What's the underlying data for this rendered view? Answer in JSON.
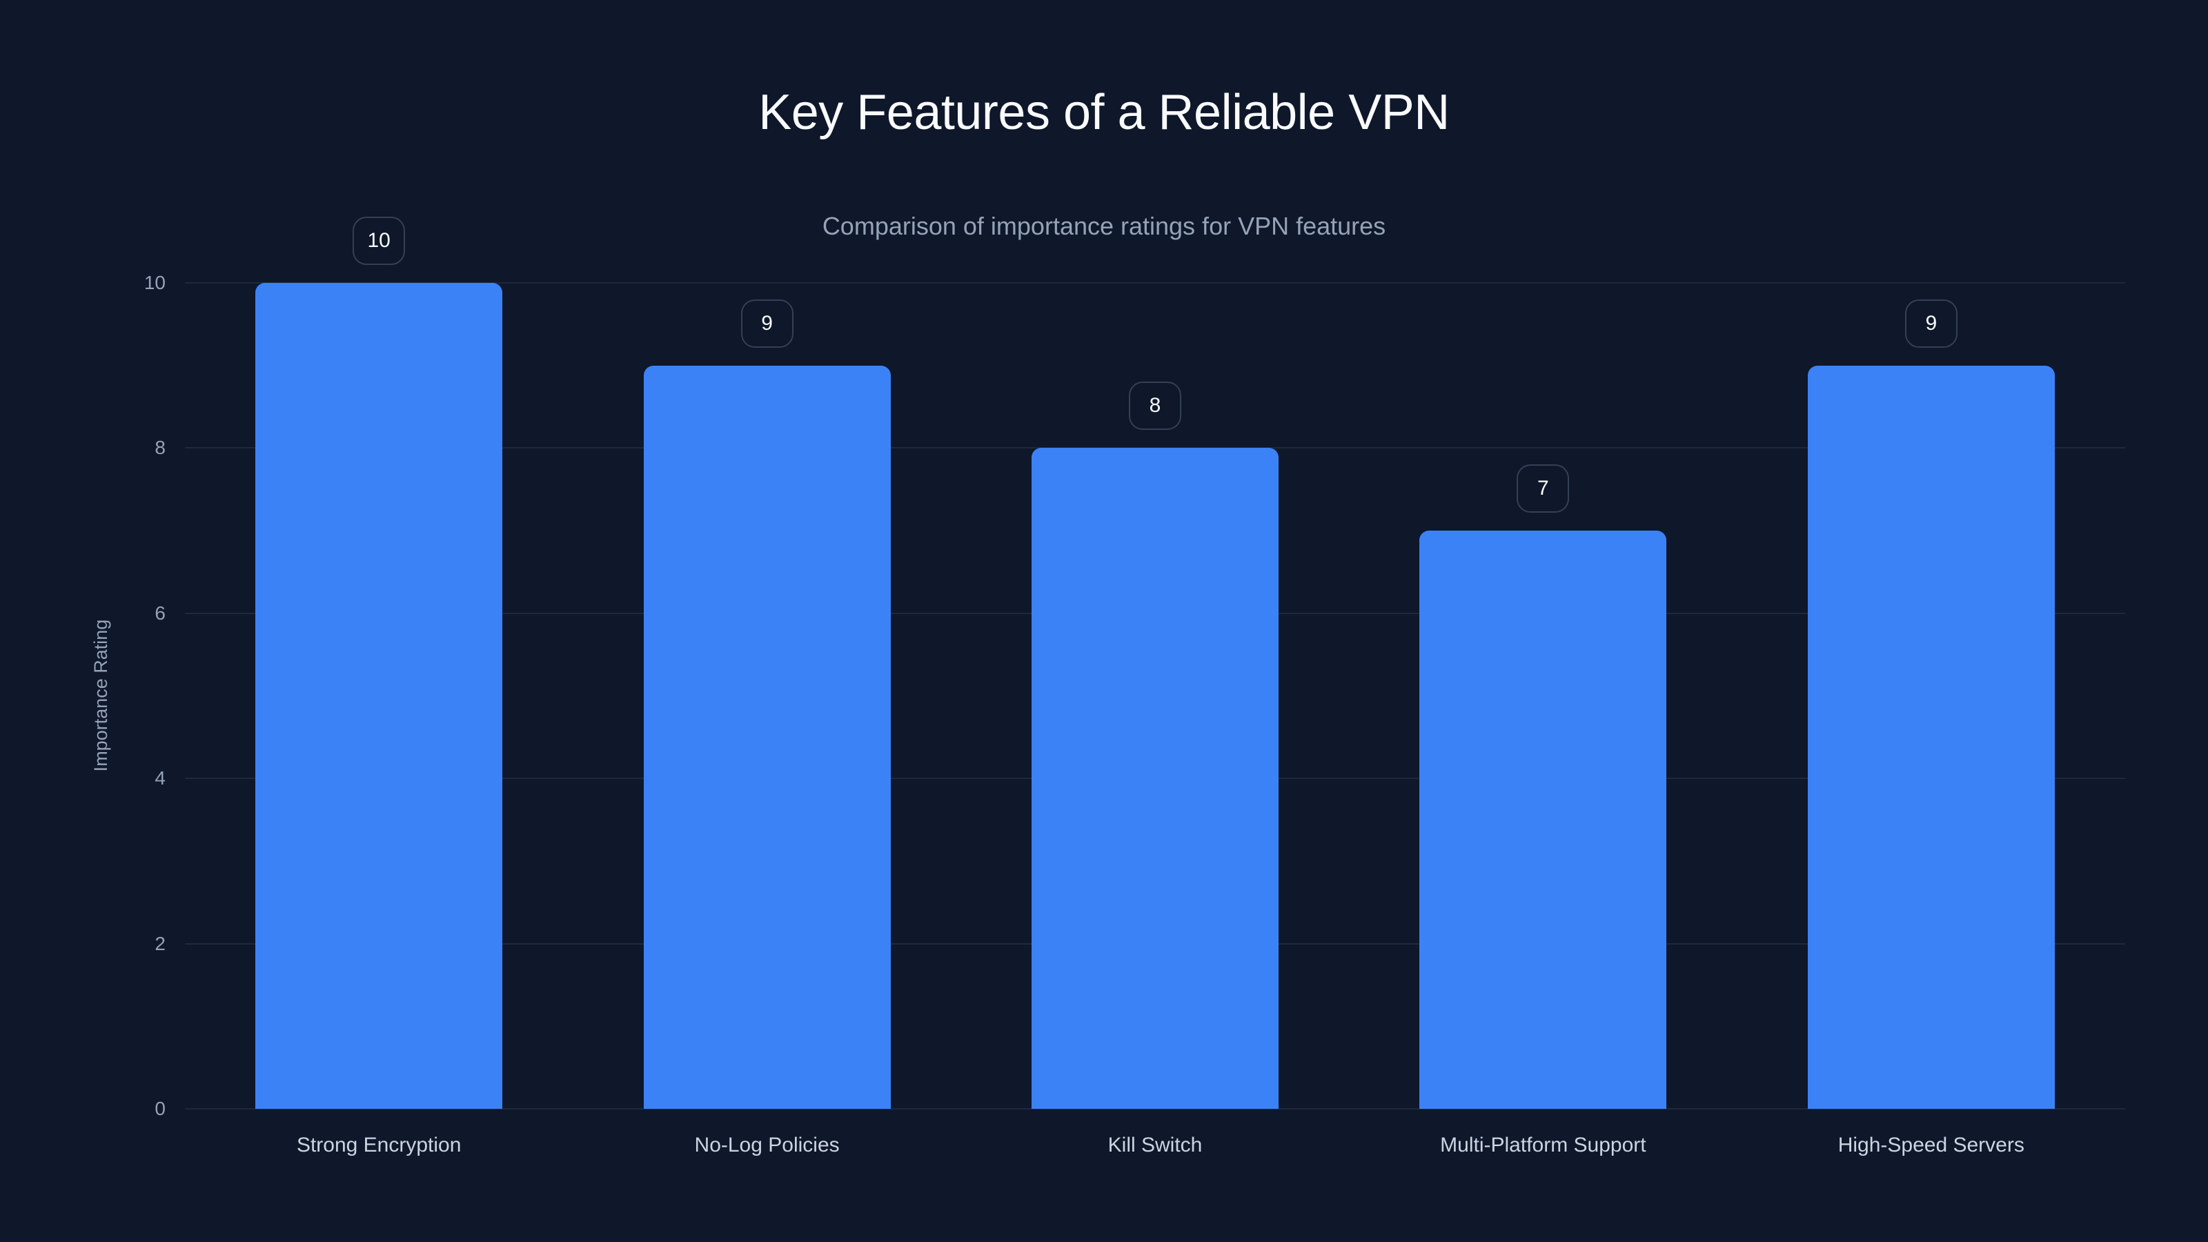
{
  "header": {
    "title": "Key Features of a Reliable VPN",
    "subtitle": "Comparison of importance ratings for VPN features"
  },
  "axes": {
    "ylabel": "Importance Rating",
    "yticks": [
      "0",
      "2",
      "4",
      "6",
      "8",
      "10"
    ],
    "xticks": [
      "Strong Encryption",
      "No-Log Policies",
      "Kill Switch",
      "Multi-Platform Support",
      "High-Speed Servers"
    ]
  },
  "bars": [
    {
      "label": "Strong Encryption",
      "value": 10,
      "value_label": "10"
    },
    {
      "label": "No-Log Policies",
      "value": 9,
      "value_label": "9"
    },
    {
      "label": "Kill Switch",
      "value": 8,
      "value_label": "8"
    },
    {
      "label": "Multi-Platform Support",
      "value": 7,
      "value_label": "7"
    },
    {
      "label": "High-Speed Servers",
      "value": 9,
      "value_label": "9"
    }
  ],
  "colors": {
    "background": "#0f172a",
    "bar": "#3b82f6",
    "gridline": "#1e293b",
    "badge_border": "#334155",
    "title": "#f8fafc",
    "axis_text": "#94a3b8"
  },
  "chart_data": {
    "type": "bar",
    "title": "Key Features of a Reliable VPN",
    "subtitle": "Comparison of importance ratings for VPN features",
    "categories": [
      "Strong Encryption",
      "No-Log Policies",
      "Kill Switch",
      "Multi-Platform Support",
      "High-Speed Servers"
    ],
    "values": [
      10,
      9,
      8,
      7,
      9
    ],
    "xlabel": "",
    "ylabel": "Importance Rating",
    "ylim": [
      0,
      10
    ],
    "yticks": [
      0,
      2,
      4,
      6,
      8,
      10
    ],
    "grid": true,
    "legend": null,
    "data_labels": true
  }
}
